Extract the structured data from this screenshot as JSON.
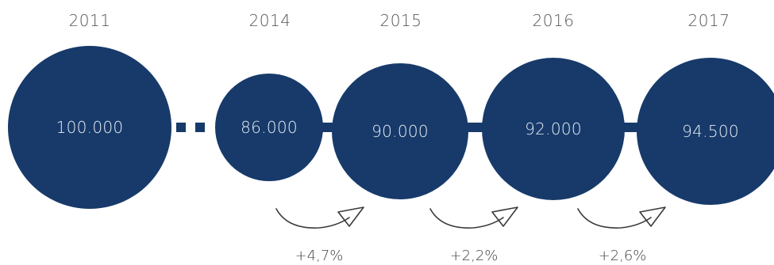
{
  "years": [
    "2011",
    "2014",
    "2015",
    "2016",
    "2017"
  ],
  "values": [
    "100.000",
    "86.000",
    "90.000",
    "92.000",
    "94.500"
  ],
  "growth": [
    "+4,7%",
    "+2,2%",
    "+2,6%"
  ],
  "colors": {
    "circle": "#173a6a",
    "text_light": "#e8eef6",
    "text_dark": "#555555"
  }
}
